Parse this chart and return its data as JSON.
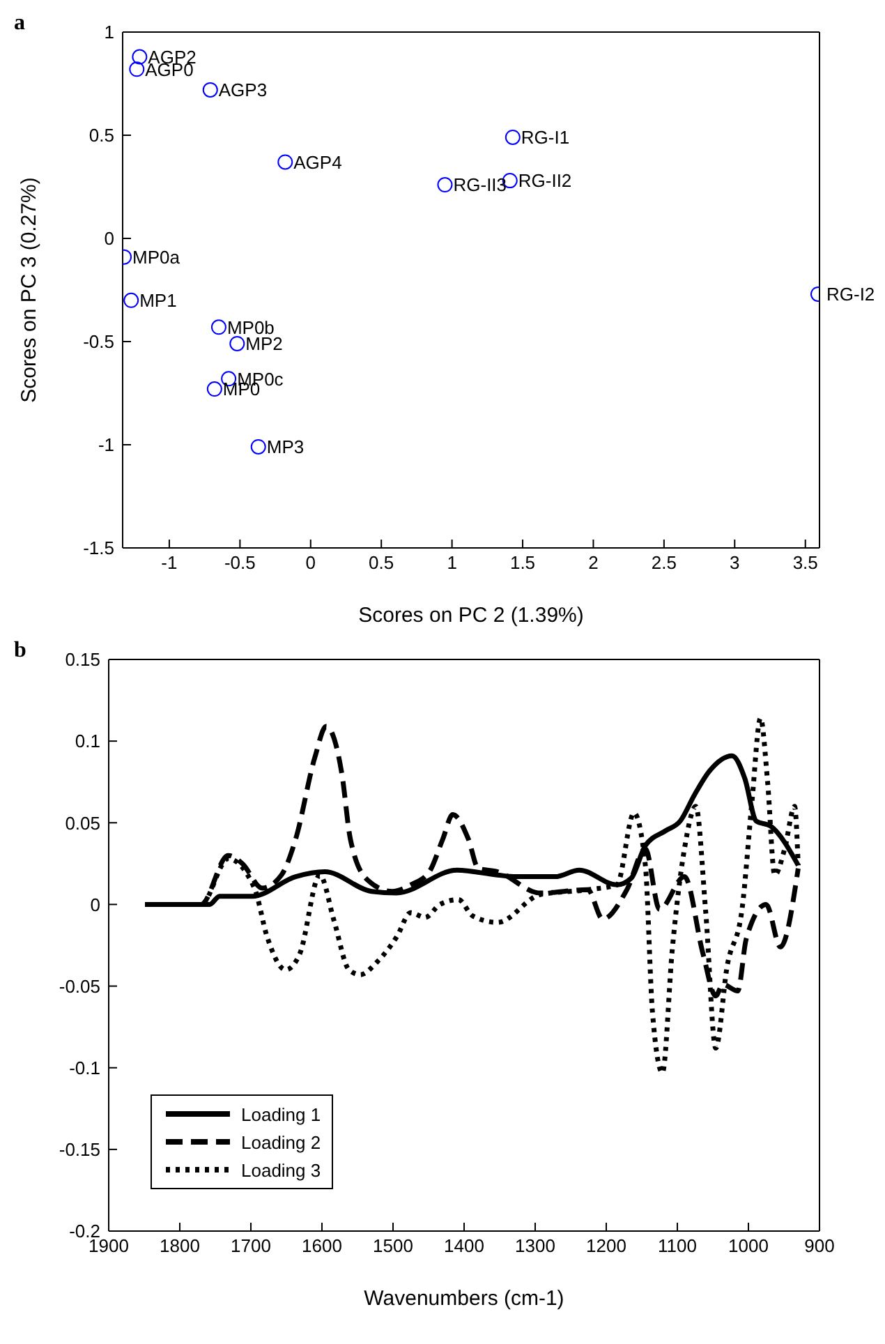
{
  "chart_data": [
    {
      "type": "scatter",
      "title": "a",
      "xlabel": "Scores on PC 2 (1.39%)",
      "ylabel": "Scores on PC 3 (0.27%)",
      "xlim": [
        -1.33,
        3.6
      ],
      "xticks": [
        -1,
        -0.5,
        0,
        0.5,
        1,
        1.5,
        2,
        2.5,
        3,
        3.5
      ],
      "ylim": [
        -1.5,
        1
      ],
      "yticks": [
        -1.5,
        -1,
        -0.5,
        0,
        0.5,
        1
      ],
      "grid": false,
      "legend": false,
      "marker": "circle",
      "series": [
        {
          "color": "#0000ff",
          "x": [
            -1.21,
            -1.23,
            -0.71,
            -0.18,
            1.43,
            0.95,
            1.41,
            -1.32,
            -1.27,
            -0.65,
            -0.52,
            -0.58,
            -0.68,
            -0.37,
            3.59
          ],
          "values": [
            0.88,
            0.82,
            0.72,
            0.37,
            0.49,
            0.26,
            0.28,
            -0.09,
            -0.3,
            -0.43,
            -0.51,
            -0.68,
            -0.73,
            -1.01,
            -0.27
          ]
        }
      ],
      "annotations": [
        {
          "text": "AGP2",
          "x": -1.21,
          "y": 0.88
        },
        {
          "text": "AGP0",
          "x": -1.23,
          "y": 0.82
        },
        {
          "text": "AGP3",
          "x": -0.71,
          "y": 0.72
        },
        {
          "text": "AGP4",
          "x": -0.18,
          "y": 0.37
        },
        {
          "text": "RG-I1",
          "x": 1.43,
          "y": 0.49
        },
        {
          "text": "RG-II3",
          "x": 0.95,
          "y": 0.26
        },
        {
          "text": "RG-II2",
          "x": 1.41,
          "y": 0.28
        },
        {
          "text": "MP0a",
          "x": -1.32,
          "y": -0.09
        },
        {
          "text": "MP1",
          "x": -1.27,
          "y": -0.3
        },
        {
          "text": "MP0b",
          "x": -0.65,
          "y": -0.43
        },
        {
          "text": "MP2",
          "x": -0.52,
          "y": -0.51
        },
        {
          "text": "MP0c",
          "x": -0.58,
          "y": -0.68
        },
        {
          "text": "MP0",
          "x": -0.68,
          "y": -0.73
        },
        {
          "text": "MP3",
          "x": -0.37,
          "y": -1.01
        },
        {
          "text": "RG-I2",
          "x": 3.59,
          "y": -0.27
        }
      ]
    },
    {
      "type": "line",
      "title": "b",
      "xlabel": "Wavenumbers (cm-1)",
      "xlim": [
        1900,
        900
      ],
      "xticks": [
        1900,
        1800,
        1700,
        1600,
        1500,
        1400,
        1300,
        1200,
        1100,
        1000,
        900
      ],
      "ylim": [
        -0.2,
        0.15
      ],
      "yticks": [
        -0.2,
        -0.15,
        -0.1,
        -0.05,
        0,
        0.05,
        0.1,
        0.15
      ],
      "grid": false,
      "legend": "bottom left",
      "marker": "none",
      "series": [
        {
          "name": "Loading 1",
          "color": "#000000",
          "line_style": "solid",
          "x": [
            1849,
            1758,
            1744,
            1698,
            1637,
            1596,
            1530,
            1495,
            1410,
            1353,
            1327,
            1272,
            1238,
            1185,
            1165,
            1145,
            1117,
            1096,
            1076,
            1056,
            1023,
            1005,
            989,
            969,
            930
          ],
          "values": [
            0,
            0,
            0.005,
            0.005,
            0.017,
            0.02,
            0.008,
            0.007,
            0.021,
            0.018,
            0.017,
            0.017,
            0.021,
            0.012,
            0.016,
            0.036,
            0.045,
            0.051,
            0.067,
            0.081,
            0.091,
            0.077,
            0.051,
            0.048,
            0.024
          ]
        },
        {
          "name": "Loading 2",
          "color": "#000000",
          "line_style": "dashed",
          "x": [
            1849,
            1770,
            1732,
            1712,
            1684,
            1657,
            1637,
            1610,
            1594,
            1572,
            1560,
            1536,
            1501,
            1475,
            1449,
            1430,
            1416,
            1394,
            1380,
            1353,
            1293,
            1226,
            1205,
            1171,
            1145,
            1125,
            1090,
            1064,
            1046,
            1036,
            1015,
            1003,
            975,
            955,
            930
          ],
          "values": [
            0,
            0,
            0.03,
            0.025,
            0.01,
            0.018,
            0.04,
            0.09,
            0.109,
            0.08,
            0.04,
            0.015,
            0.008,
            0.012,
            0.02,
            0.04,
            0.055,
            0.04,
            0.022,
            0.02,
            0.007,
            0.009,
            -0.009,
            0.009,
            0.034,
            -0.003,
            0.017,
            -0.03,
            -0.056,
            -0.049,
            -0.053,
            -0.021,
            0,
            -0.026,
            0.022
          ]
        },
        {
          "name": "Loading 3",
          "color": "#000000",
          "line_style": "dotted",
          "x": [
            1849,
            1770,
            1732,
            1695,
            1677,
            1651,
            1631,
            1603,
            1583,
            1562,
            1546,
            1522,
            1495,
            1475,
            1455,
            1434,
            1408,
            1388,
            1353,
            1293,
            1226,
            1185,
            1161,
            1145,
            1135,
            1121,
            1107,
            1090,
            1074,
            1060,
            1046,
            1030,
            1009,
            995,
            983,
            973,
            963,
            949,
            935,
            930
          ],
          "values": [
            0,
            0,
            0.028,
            0.01,
            -0.02,
            -0.04,
            -0.03,
            0.018,
            -0.01,
            -0.04,
            -0.043,
            -0.035,
            -0.02,
            -0.005,
            -0.008,
            0,
            0.003,
            -0.007,
            -0.011,
            0.006,
            0.009,
            0.012,
            0.056,
            0.024,
            -0.066,
            -0.103,
            -0.027,
            0.034,
            0.06,
            -0.005,
            -0.088,
            -0.038,
            -0.003,
            0.063,
            0.114,
            0.075,
            0.018,
            0.034,
            0.06,
            0.024
          ]
        }
      ]
    }
  ]
}
